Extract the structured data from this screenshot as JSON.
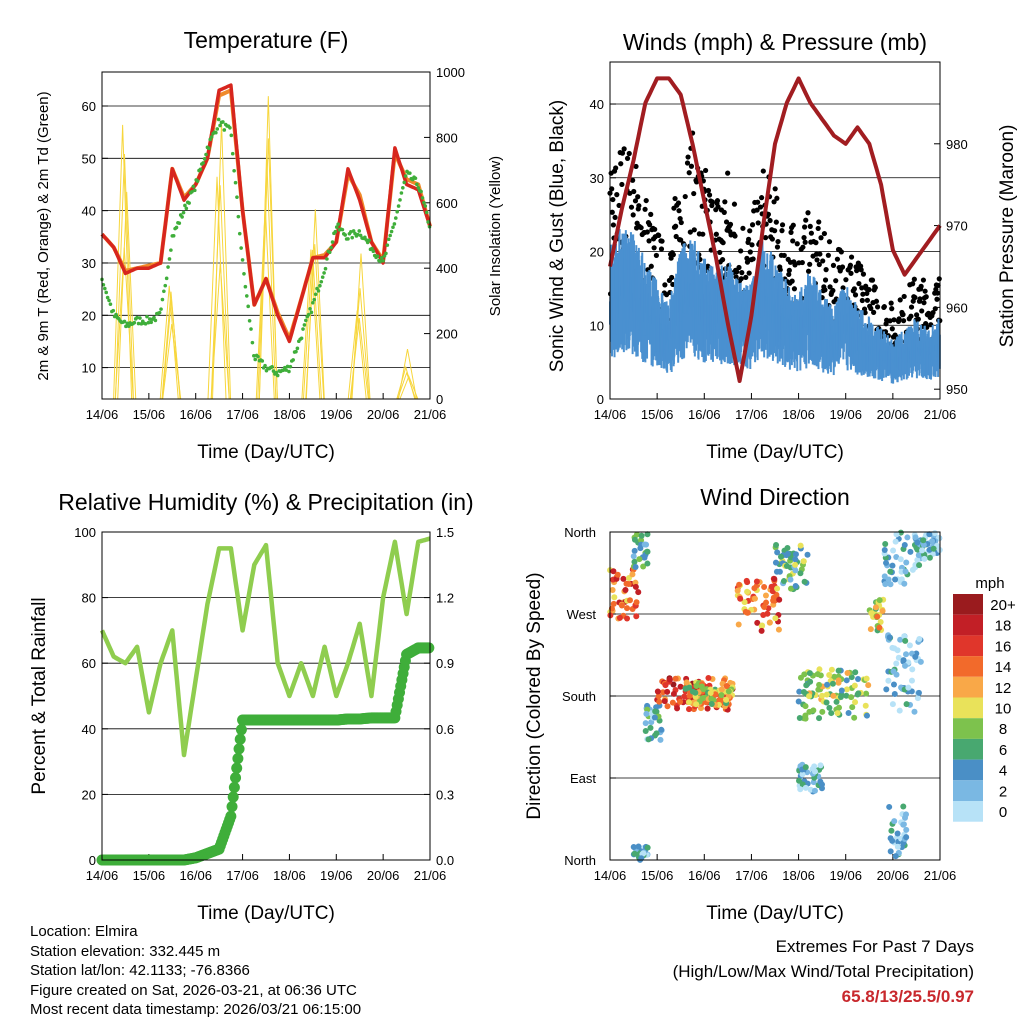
{
  "chart_data": [
    {
      "type": "line",
      "title": "Temperature (F)",
      "xlabel": "Time (Day/UTC)",
      "ylabel": "2m & 9m T (Red, Orange) & 2m Td (Green)",
      "ylabel_right": "Solar Insolation (Yellow)",
      "x_ticks": [
        "14/06",
        "15/06",
        "16/06",
        "17/06",
        "18/06",
        "19/06",
        "20/06",
        "21/06"
      ],
      "y_ticks": [
        10,
        20,
        30,
        40,
        50,
        60
      ],
      "ylim": [
        4,
        66.5
      ],
      "y2_ticks": [
        0,
        200,
        400,
        600,
        800,
        1000
      ],
      "y2lim": [
        0,
        1000
      ],
      "x_step_days": 0.25,
      "series": [
        {
          "name": "2m T",
          "color": "#d7261e",
          "values": [
            35.5,
            33,
            28,
            29,
            29,
            30,
            48,
            42,
            45,
            50,
            63,
            64,
            40,
            22,
            27,
            20,
            15,
            23,
            31,
            31,
            34,
            48,
            42,
            34,
            30,
            52,
            45,
            44,
            37
          ]
        },
        {
          "name": "9m T",
          "color": "#f08a2a",
          "values": [
            35.5,
            33,
            28.5,
            29,
            29.5,
            30,
            48,
            42.5,
            45,
            50,
            62,
            63,
            40,
            22,
            27,
            20.5,
            15.5,
            23,
            31,
            31.5,
            34,
            47,
            43,
            34,
            30.5,
            51,
            46,
            45,
            37
          ]
        },
        {
          "name": "2m Td",
          "color": "#3fae3a",
          "values": [
            27,
            20,
            18,
            19,
            19,
            20,
            35,
            40,
            45,
            52,
            57,
            55,
            30,
            12,
            10,
            9,
            10,
            16,
            22,
            29,
            37,
            35,
            36,
            33,
            30,
            38,
            47,
            45,
            37
          ]
        }
      ],
      "solar_peaks": [
        {
          "day": 0.5,
          "value": 880
        },
        {
          "day": 1.45,
          "value": 420
        },
        {
          "day": 2.5,
          "value": 960
        },
        {
          "day": 3.5,
          "value": 980
        },
        {
          "day": 4.5,
          "value": 790
        },
        {
          "day": 5.5,
          "value": 480
        },
        {
          "day": 6.5,
          "value": 160
        }
      ],
      "solar_color": "#f7d63c"
    },
    {
      "type": "scatter",
      "title": "Winds (mph) & Pressure (mb)",
      "xlabel": "Time (Day/UTC)",
      "ylabel": "Sonic Wind & Gust (Blue, Black)",
      "ylabel_right": "Station Pressure (Maroon)",
      "x_ticks": [
        "14/06",
        "15/06",
        "16/06",
        "17/06",
        "18/06",
        "19/06",
        "20/06",
        "21/06"
      ],
      "y_ticks": [
        0,
        10,
        20,
        30,
        40
      ],
      "ylim": [
        0,
        45.7
      ],
      "y2_ticks": [
        950,
        960,
        970,
        980
      ],
      "y2lim": [
        948.8,
        990
      ],
      "x_step_days": 0.25,
      "series": [
        {
          "name": "Sonic Wind",
          "color": "#4a90d0",
          "values": [
            13,
            15,
            14,
            12,
            10,
            8,
            13,
            14,
            12,
            11,
            12,
            10,
            10,
            14,
            12,
            10,
            9,
            11,
            9,
            8,
            10,
            8,
            7,
            6,
            5,
            6,
            7,
            6,
            7
          ]
        },
        {
          "name": "Gust",
          "color": "#000000",
          "values": [
            22,
            25,
            23,
            20,
            16,
            14,
            24,
            25,
            22,
            20,
            22,
            18,
            17,
            22,
            20,
            17,
            16,
            18,
            16,
            14,
            16,
            13,
            12,
            10,
            9,
            10,
            12,
            11,
            12
          ]
        },
        {
          "name": "Station Pressure",
          "color": "#a11d21",
          "values": [
            965,
            972,
            978,
            985,
            988,
            988,
            986,
            980,
            973,
            966,
            958,
            951,
            959,
            970,
            980,
            985,
            988,
            985,
            983,
            981,
            980,
            982,
            980,
            975,
            967,
            964,
            966,
            968,
            970
          ]
        }
      ]
    },
    {
      "type": "line",
      "title": "Relative Humidity (%) & Precipitation (in)",
      "xlabel": "Time (Day/UTC)",
      "ylabel": "Percent & Total Rainfall",
      "x_ticks": [
        "14/06",
        "15/06",
        "16/06",
        "17/06",
        "18/06",
        "19/06",
        "20/06",
        "21/06"
      ],
      "y_ticks": [
        0,
        20,
        40,
        60,
        80,
        100
      ],
      "ylim": [
        0,
        100
      ],
      "y2_ticks": [
        "0.0",
        "0.3",
        "0.6",
        "0.9",
        "1.2",
        "1.5"
      ],
      "y2lim": [
        0,
        1.5
      ],
      "x_step_days": 0.25,
      "series": [
        {
          "name": "Relative Humidity",
          "color": "#8fcd4f",
          "values": [
            70,
            62,
            60,
            65,
            45,
            60,
            70,
            32,
            55,
            78,
            95,
            95,
            70,
            90,
            96,
            60,
            50,
            60,
            50,
            65,
            50,
            60,
            72,
            50,
            80,
            97,
            75,
            97,
            98
          ]
        },
        {
          "name": "Total Precipitation",
          "color": "#3fae3a",
          "values": [
            0,
            0,
            0,
            0,
            0,
            0,
            0,
            0,
            0.01,
            0.03,
            0.05,
            0.2,
            0.64,
            0.64,
            0.64,
            0.64,
            0.64,
            0.64,
            0.64,
            0.64,
            0.64,
            0.645,
            0.645,
            0.65,
            0.65,
            0.65,
            0.94,
            0.97,
            0.97
          ]
        }
      ]
    },
    {
      "type": "scatter",
      "title": "Wind Direction",
      "xlabel": "Time (Day/UTC)",
      "ylabel": "Direction (Colored By Speed)",
      "x_ticks": [
        "14/06",
        "15/06",
        "16/06",
        "17/06",
        "18/06",
        "19/06",
        "20/06",
        "21/06"
      ],
      "y_ticks": [
        {
          "deg": 0,
          "label": "North"
        },
        {
          "deg": 90,
          "label": "East"
        },
        {
          "deg": 180,
          "label": "South"
        },
        {
          "deg": 270,
          "label": "West"
        },
        {
          "deg": 360,
          "label": "North"
        }
      ],
      "clusters": [
        {
          "d0": 0,
          "d1": 0.6,
          "a0": 265,
          "a1": 320,
          "speed": 14
        },
        {
          "d0": 0.5,
          "d1": 0.8,
          "a0": 320,
          "a1": 360,
          "speed": 5
        },
        {
          "d0": 0.5,
          "d1": 0.8,
          "a0": 0,
          "a1": 15,
          "speed": 3
        },
        {
          "d0": 0.75,
          "d1": 1.1,
          "a0": 130,
          "a1": 170,
          "speed": 4
        },
        {
          "d0": 1.0,
          "d1": 2.6,
          "a0": 165,
          "a1": 200,
          "speed": 16
        },
        {
          "d0": 1.6,
          "d1": 2.6,
          "a0": 170,
          "a1": 195,
          "speed": 10
        },
        {
          "d0": 2.7,
          "d1": 3.6,
          "a0": 250,
          "a1": 310,
          "speed": 14
        },
        {
          "d0": 3.5,
          "d1": 4.2,
          "a0": 295,
          "a1": 350,
          "speed": 6
        },
        {
          "d0": 4.0,
          "d1": 4.5,
          "a0": 75,
          "a1": 105,
          "speed": 3
        },
        {
          "d0": 4.0,
          "d1": 5.5,
          "a0": 155,
          "a1": 210,
          "speed": 8
        },
        {
          "d0": 5.5,
          "d1": 5.8,
          "a0": 250,
          "a1": 290,
          "speed": 10
        },
        {
          "d0": 5.8,
          "d1": 6.6,
          "a0": 300,
          "a1": 360,
          "speed": 3
        },
        {
          "d0": 5.8,
          "d1": 6.6,
          "a0": 160,
          "a1": 250,
          "speed": 2
        },
        {
          "d0": 5.9,
          "d1": 6.3,
          "a0": 0,
          "a1": 60,
          "speed": 2
        },
        {
          "d0": 6.6,
          "d1": 7,
          "a0": 330,
          "a1": 360,
          "speed": 2
        }
      ],
      "legend": {
        "title": "mph",
        "labels": [
          "20+",
          "18",
          "16",
          "14",
          "12",
          "10",
          "8",
          "6",
          "4",
          "2",
          "0"
        ],
        "colors": [
          "#9a1b1e",
          "#c21f26",
          "#e0362b",
          "#f26a2b",
          "#f9a848",
          "#e9e25a",
          "#7dc24d",
          "#48a870",
          "#4a8fc6",
          "#7ab8e3",
          "#b7e2f7"
        ]
      }
    }
  ],
  "info": {
    "location": "Location: Elmira",
    "elevation": "Station elevation: 332.445 m",
    "latlon": "Station lat/lon: 42.1133; -76.8366",
    "created": "Figure created on Sat, 2026-03-21, at 06:36 UTC",
    "recent": "Most recent data timestamp: 2026/03/21 06:15:00"
  },
  "extremes": {
    "title": "Extremes For Past 7 Days",
    "subtitle": "(High/Low/Max Wind/Total Precipitation)",
    "values": "65.8/13/25.5/0.97"
  }
}
